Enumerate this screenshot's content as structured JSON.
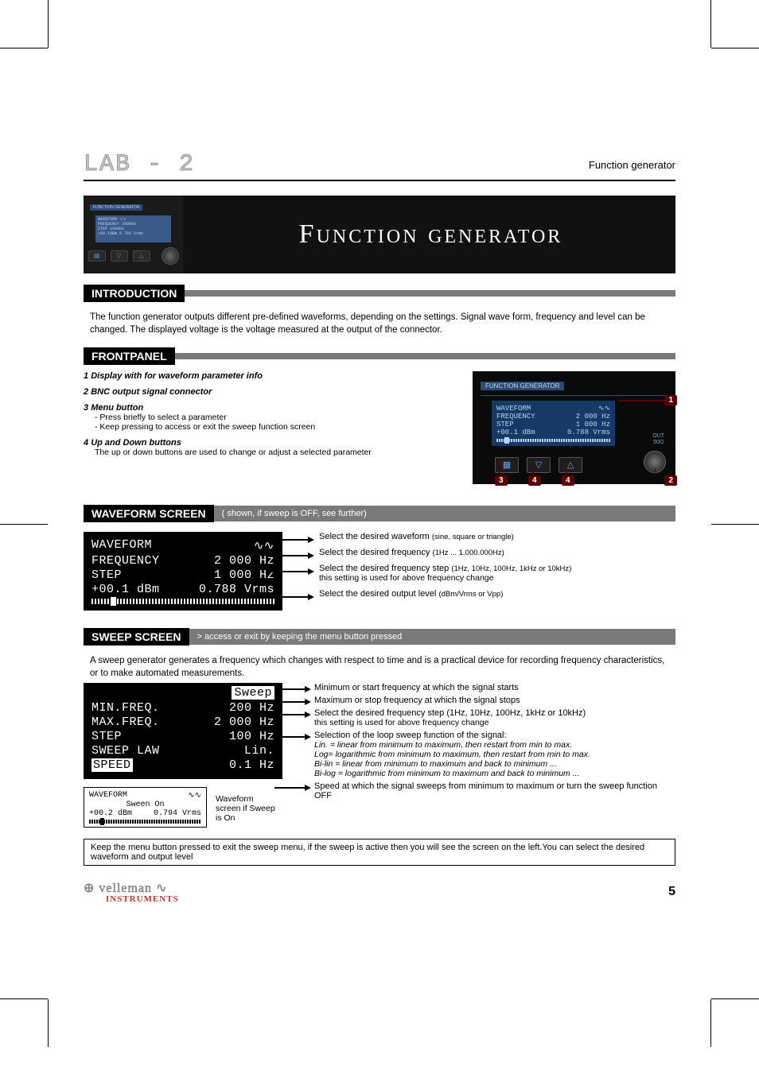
{
  "header": {
    "logo_text": "LAB - 2",
    "right_text": "Function generator"
  },
  "hero": {
    "device_label": "FUNCTION GENERATOR",
    "lcd": {
      "r1a": "WAVEFORM",
      "r1b": "∿∿",
      "r2a": "FREQUENCY",
      "r2b": "2000Hz",
      "r3a": "STEP",
      "r3b": "1000Hz",
      "r4a": "+00.1dBm",
      "r4b": "0.788 Vrms"
    },
    "title": "Function generator"
  },
  "introduction": {
    "label": "INTRODUCTION",
    "text": "The function generator outputs different pre-defined waveforms,  depending on the settings. Signal wave form, frequency and level can be changed. The displayed voltage is the voltage measured at the output of the connector."
  },
  "frontpanel": {
    "label": "FRONTPANEL",
    "items": [
      {
        "num": "1",
        "title": "Display with for waveform parameter info",
        "subs": []
      },
      {
        "num": "2",
        "title": "BNC output signal connector",
        "subs": []
      },
      {
        "num": "3",
        "title": "Menu button",
        "subs": [
          "- Press briefly to select a parameter",
          "- Keep pressing to access or exit the sweep function screen"
        ]
      },
      {
        "num": "4",
        "title": "Up and Down buttons",
        "subs": [
          "The up or down buttons are used to change or adjust a selected parameter"
        ]
      }
    ],
    "device_label": "FUNCTION GENERATOR",
    "lcd": {
      "r1a": "WAVEFORM",
      "r1b": "∿∿",
      "r2a": "FREQUENCY",
      "r2b": "2 000 Hz",
      "r3a": "STEP",
      "r3b": "1 000 Hz",
      "r4a": "+00.1 dBm",
      "r4b": "0.788 Vrms"
    },
    "out_label": "OUT\n50Ω",
    "callouts": {
      "c1": "1",
      "c2": "2",
      "c3": "3",
      "c4a": "4",
      "c4b": "4"
    }
  },
  "waveform": {
    "label": "WAVEFORM SCREEN",
    "tail": "( shown, if sweep is OFF, see further)",
    "lcd": {
      "r1a": "WAVEFORM",
      "r1b": "∿∿",
      "r2a": "FREQUENCY",
      "r2b": "2 000 Hz",
      "r3a": "STEP",
      "r3b": "1 000 Hz",
      "r4a": "+00.1 dBm",
      "r4b": "0.788 Vrms"
    },
    "desc": [
      {
        "main": "Select the desired waveform ",
        "small": "(sine, square or triangle)"
      },
      {
        "main": "Select the desired frequency  ",
        "small": "(1Hz ... 1.000.000Hz)"
      },
      {
        "main": "Select the desired frequency step ",
        "small": "(1Hz, 10Hz, 100Hz, 1kHz or 10kHz)",
        "sub": "this setting is used for above frequency change"
      },
      {
        "main": "Select the desired output level ",
        "small": "(dBm/Vrms or Vpp)"
      }
    ]
  },
  "sweep": {
    "label": "SWEEP SCREEN",
    "tail": "> access or exit by keeping the menu button pressed",
    "intro": "A sweep generator generates a frequency which changes with respect to time and is a practical device for recording frequency characteristics, or to make automated measurements.",
    "lcd_title": "Sweep",
    "lcd": {
      "r1a": "MIN.FREQ.",
      "r1b": "200 Hz",
      "r2a": "MAX.FREQ.",
      "r2b": "2 000 Hz",
      "r3a": "STEP",
      "r3b": "100 Hz",
      "r4a": "SWEEP LAW",
      "r4b": "Lin.",
      "r5a": "SPEED",
      "r5b": "0.1 Hz"
    },
    "lcd_speed_label": "SPEED",
    "mini": {
      "r1a": "WAVEFORM",
      "r1b": "∿∿",
      "r2": "Sween On",
      "r3a": "+00.2 dBm",
      "r3b": "0.794 Vrms"
    },
    "mini_label": "Waveform screen if Sweep is On",
    "desc": [
      {
        "main": "Minimum or start frequency at which the signal starts"
      },
      {
        "main": "Maximum or stop frequency at which the signal stops"
      },
      {
        "main": "Select the desired frequency step ",
        "small": "(1Hz, 10Hz, 100Hz, 1kHz or 10kHz)",
        "sub": "this setting is used for above frequency change"
      },
      {
        "main": "Selection of the loop sweep function of the signal:",
        "itals": [
          "Lin. = linear from minimum to maximum, then restart from min to max.",
          "Log= logarithmic from minimum to maximum, then restart from min to max.",
          "Bi-lin = linear from minimum to maximum and back to minimum ...",
          "Bi-log = logarithmic from minimum to maximum and back to minimum ..."
        ]
      },
      {
        "main": "Speed at which the signal sweeps from minimum to maximum or turn the sweep function OFF"
      }
    ],
    "note": "Keep the menu button pressed to exit the sweep menu, if the sweep is active then you will see the screen on the left.You can select the desired waveform and output level"
  },
  "footer": {
    "brand1": "velleman",
    "brand2": "INSTRUMENTS",
    "page": "5"
  },
  "colors": {
    "bar_black": "#000000",
    "bar_gray": "#7a7a7a",
    "callout_red": "#5a0000",
    "lcd_blue": "#153a66",
    "lcd_text": "#b9d2ef",
    "brand_red": "#c0392b"
  }
}
